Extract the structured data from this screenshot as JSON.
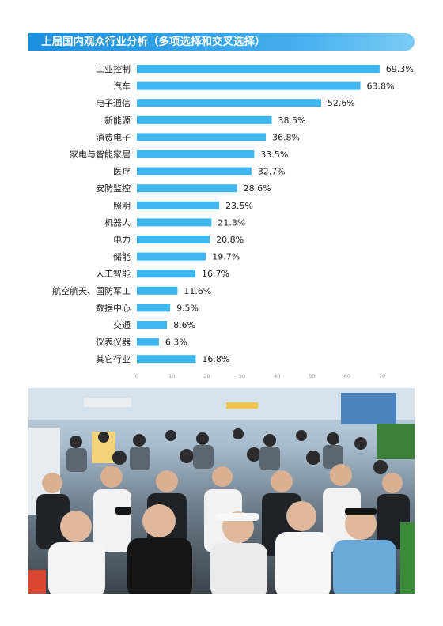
{
  "header": {
    "title": "上届国内观众行业分析（多项选择和交叉选择）"
  },
  "colors": {
    "bar": "#3fb6ee",
    "banner": "#1a8fe0",
    "text": "#222222"
  },
  "chart_data": {
    "type": "bar",
    "orientation": "horizontal",
    "title": "上届国内观众行业分析（多项选择和交叉选择）",
    "categories": [
      "工业控制",
      "汽车",
      "电子通信",
      "新能源",
      "消费电子",
      "家电与智能家居",
      "医疗",
      "安防监控",
      "照明",
      "机器人",
      "电力",
      "储能",
      "人工智能",
      "航空航天、国防军工",
      "数据中心",
      "交通",
      "仪表仪器",
      "其它行业"
    ],
    "values": [
      69.3,
      63.8,
      52.6,
      38.5,
      36.8,
      33.5,
      32.7,
      28.6,
      23.5,
      21.3,
      20.8,
      19.7,
      16.7,
      11.6,
      9.5,
      8.6,
      6.3,
      16.8
    ],
    "value_labels": [
      "69.3%",
      "63.8%",
      "52.6%",
      "38.5%",
      "36.8%",
      "33.5%",
      "32.7%",
      "28.6%",
      "23.5%",
      "21.3%",
      "20.8%",
      "19.7%",
      "16.7%",
      "11.6%",
      "9.5%",
      "8.6%",
      "6.3%",
      "16.8%"
    ],
    "xticks": [
      "0",
      "10",
      "20",
      "30",
      "40",
      "50",
      "60",
      "70"
    ],
    "xlim": [
      0,
      70
    ],
    "grid": false,
    "legend": "none"
  }
}
